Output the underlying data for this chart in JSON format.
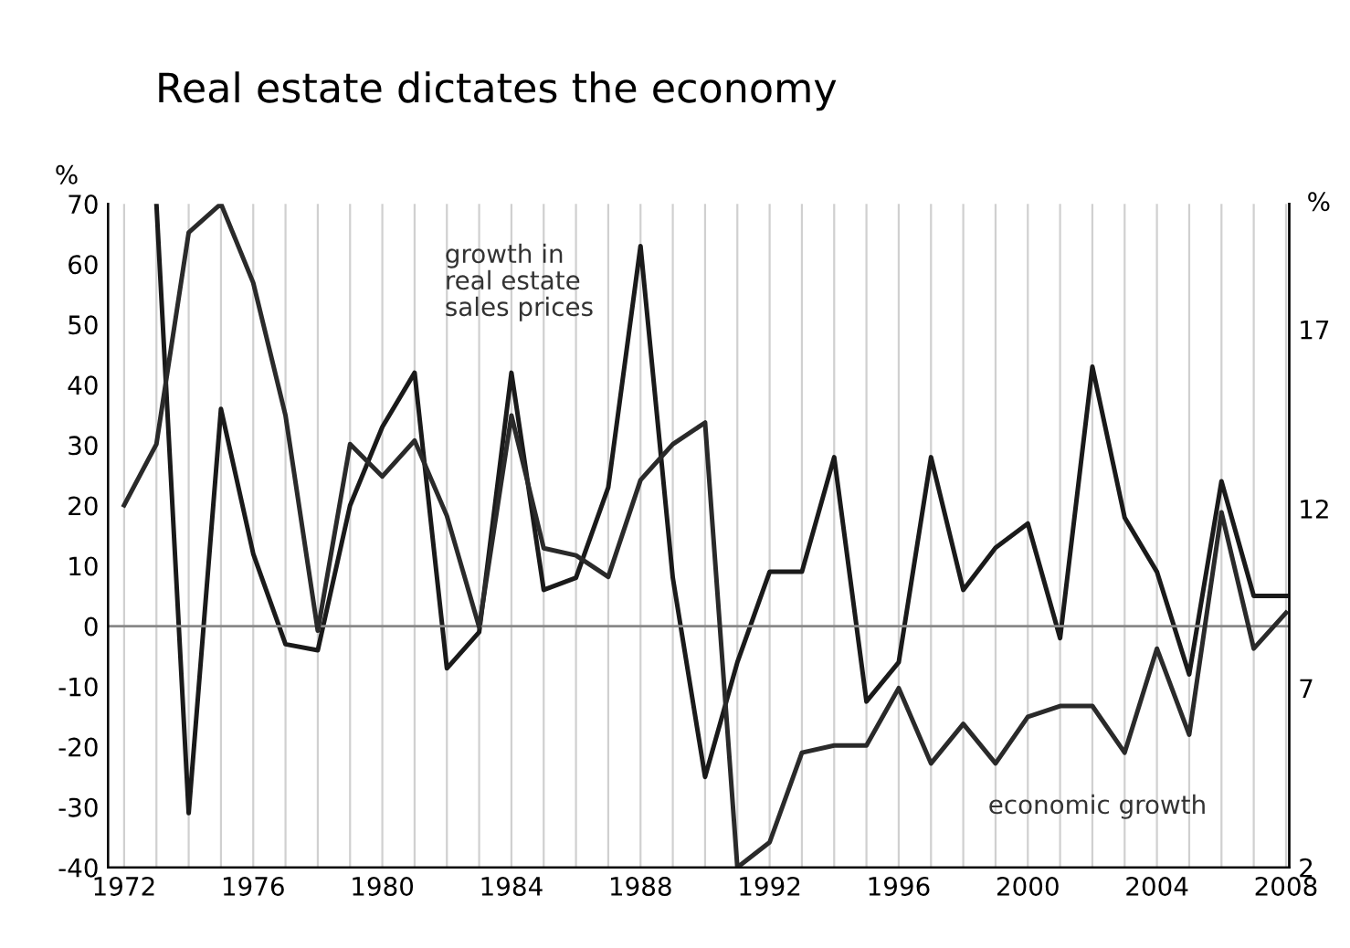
{
  "chart_data": {
    "type": "line",
    "title": "Real estate dictates the economy",
    "ylabel": "%",
    "y2label": "%",
    "x": [
      1972,
      1973,
      1974,
      1975,
      1976,
      1977,
      1978,
      1979,
      1980,
      1981,
      1982,
      1983,
      1984,
      1985,
      1986,
      1987,
      1988,
      1989,
      1990,
      1991,
      1992,
      1993,
      1994,
      1995,
      1996,
      1997,
      1998,
      1999,
      2000,
      2001,
      2002,
      2003,
      2004,
      2005,
      2006,
      2007,
      2008
    ],
    "series": [
      {
        "color": "#1a1a1a",
        "values": [
          null,
          70,
          -31,
          36,
          12,
          -3,
          -4,
          20,
          33,
          42,
          -7,
          -1,
          42,
          6,
          8,
          23,
          63,
          8,
          -25,
          -6,
          9,
          9,
          28,
          -12.5,
          -6,
          28,
          6,
          13,
          17,
          -2,
          43,
          18,
          9,
          -8,
          24,
          5,
          5
        ]
      },
      {
        "color": "#2a2a2a",
        "axis": "y2",
        "values": [
          12.1,
          13.8,
          19.7,
          20.5,
          18.3,
          14.6,
          8.6,
          13.8,
          12.9,
          13.9,
          11.8,
          8.7,
          14.6,
          10.9,
          10.7,
          10.1,
          12.8,
          13.8,
          14.4,
          2.0,
          2.7,
          5.2,
          5.4,
          5.4,
          7.0,
          4.9,
          6.0,
          4.9,
          6.2,
          6.5,
          6.5,
          5.2,
          8.1,
          5.7,
          11.9,
          8.1,
          9.1
        ]
      }
    ],
    "xlim": [
      1971.5,
      2008.1
    ],
    "ylim": [
      -40,
      70
    ],
    "yticks": [
      -40,
      -30,
      -20,
      -10,
      0,
      10,
      20,
      30,
      40,
      50,
      60,
      70
    ],
    "y2lim": [
      2,
      20.5
    ],
    "y2ticks": [
      2,
      7,
      12,
      17
    ],
    "xticks": [
      1972,
      {
        "value": 1973,
        "label": null
      },
      {
        "value": 1974,
        "label": null
      },
      {
        "value": 1975,
        "label": null
      },
      1976,
      {
        "value": 1977,
        "label": null
      },
      {
        "value": 1978,
        "label": null
      },
      {
        "value": 1979,
        "label": null
      },
      1980,
      {
        "value": 1981,
        "label": null
      },
      {
        "value": 1982,
        "label": null
      },
      {
        "value": 1983,
        "label": null
      },
      1984,
      {
        "value": 1985,
        "label": null
      },
      {
        "value": 1986,
        "label": null
      },
      {
        "value": 1987,
        "label": null
      },
      1988,
      {
        "value": 1989,
        "label": null
      },
      {
        "value": 1990,
        "label": null
      },
      {
        "value": 1991,
        "label": null
      },
      1992,
      {
        "value": 1993,
        "label": null
      },
      {
        "value": 1994,
        "label": null
      },
      {
        "value": 1995,
        "label": null
      },
      1996,
      {
        "value": 1997,
        "label": null
      },
      {
        "value": 1998,
        "label": null
      },
      {
        "value": 1999,
        "label": null
      },
      2000,
      {
        "value": 2001,
        "label": null
      },
      {
        "value": 2002,
        "label": null
      },
      {
        "value": 2003,
        "label": null
      },
      2004,
      {
        "value": 2005,
        "label": null
      },
      {
        "value": 2006,
        "label": null
      },
      {
        "value": 2007,
        "label": null
      },
      2008
    ],
    "grid": "x",
    "ref_lines": [
      {
        "axis": "y",
        "value": 0,
        "color": "#888888"
      }
    ],
    "annotations": [
      "growth in\nreal estate\nsales prices",
      "economic growth"
    ]
  }
}
